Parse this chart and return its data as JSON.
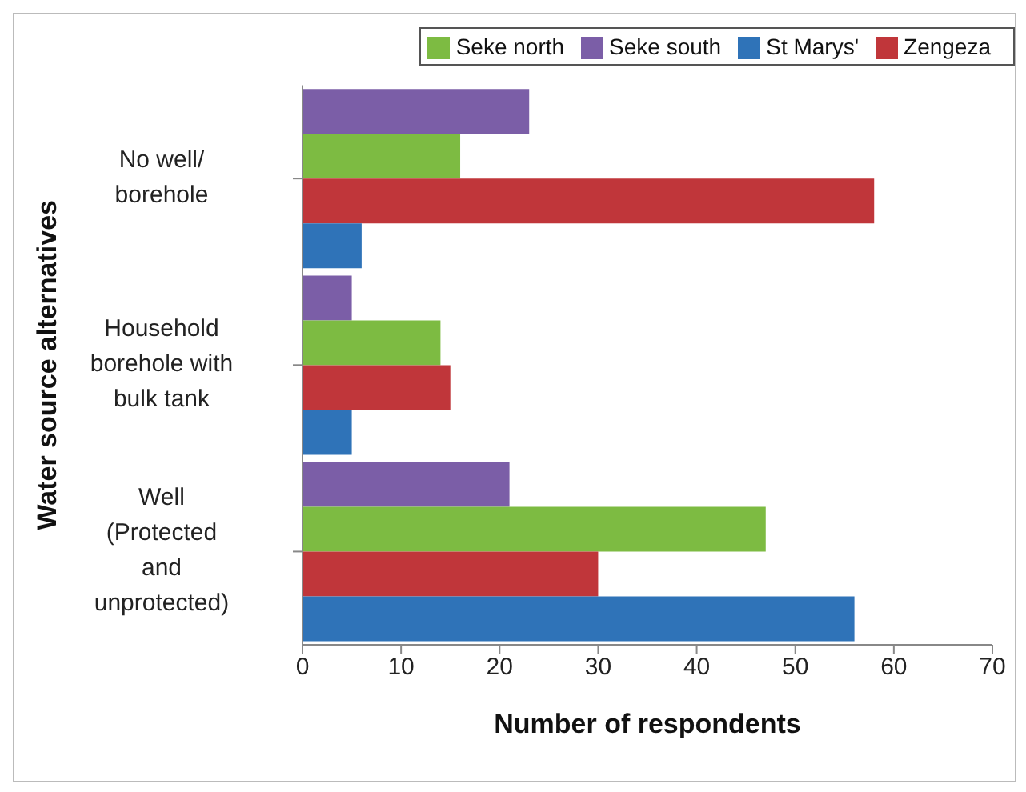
{
  "chart_data": {
    "type": "bar",
    "orientation": "horizontal",
    "xlabel": "Number of respondents",
    "ylabel": "Water source alternatives",
    "categories": [
      "No well/ borehole",
      "Household borehole with bulk tank",
      "Well (Protected and unprotected)"
    ],
    "series": [
      {
        "name": "Seke south",
        "color": "#7b5ea7",
        "values": [
          23,
          5,
          21
        ]
      },
      {
        "name": "Seke north",
        "color": "#7dbb42",
        "values": [
          16,
          14,
          47
        ]
      },
      {
        "name": "Zengeza",
        "color": "#c0363a",
        "values": [
          58,
          15,
          30
        ]
      },
      {
        "name": "St Marys'",
        "color": "#2f73b8",
        "values": [
          6,
          5,
          56
        ]
      }
    ],
    "xlim": [
      0,
      70
    ],
    "xticks": [
      0,
      10,
      20,
      30,
      40,
      50,
      60,
      70
    ],
    "grid": false,
    "legend": "top right"
  }
}
